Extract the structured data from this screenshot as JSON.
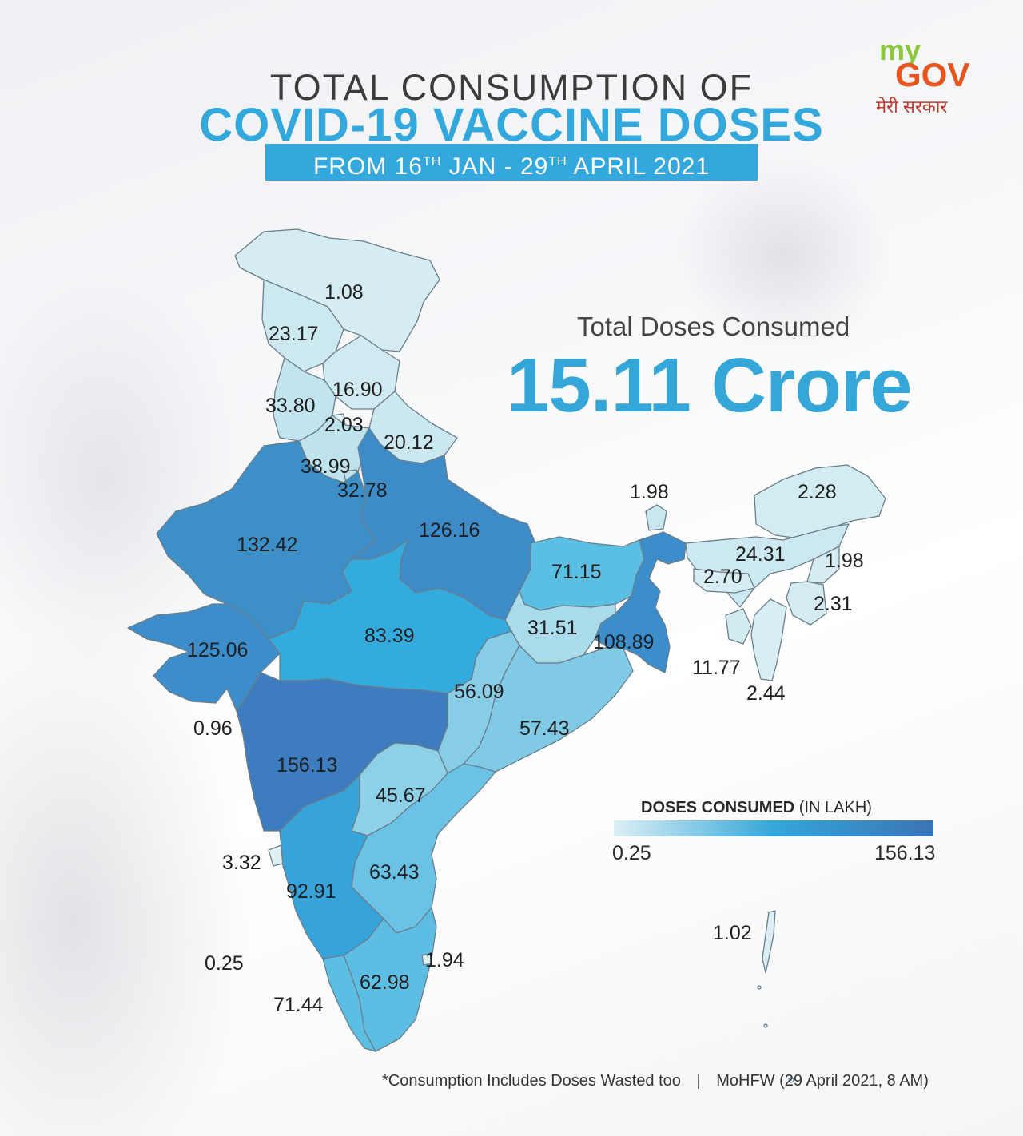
{
  "header": {
    "title_line1": "TOTAL CONSUMPTION OF",
    "title_line2": "COVID-19 VACCINE DOSES",
    "date_from": "FROM 16",
    "date_sup1": "TH",
    "date_mid": " JAN - 29",
    "date_sup2": "TH",
    "date_end": " APRIL 2021"
  },
  "logo": {
    "my": "my",
    "gov": "GOV",
    "tagline": "मेरी सरकार"
  },
  "total": {
    "label": "Total Doses Consumed",
    "value": "15.11 Crore"
  },
  "legend": {
    "title_bold": "DOSES CONSUMED",
    "title_unit": " (IN LAKH)",
    "min": "0.25",
    "max": "156.13",
    "color_min": "#dceff5",
    "color_mid": "#34a7d9",
    "color_max": "#3a74b6"
  },
  "states": [
    {
      "id": "ladakh",
      "value": "1.08"
    },
    {
      "id": "jammu-kashmir",
      "value": "23.17"
    },
    {
      "id": "himachal-pradesh",
      "value": "16.90"
    },
    {
      "id": "punjab",
      "value": "33.80"
    },
    {
      "id": "chandigarh",
      "value": "2.03"
    },
    {
      "id": "uttarakhand",
      "value": "20.12"
    },
    {
      "id": "haryana",
      "value": "38.99"
    },
    {
      "id": "delhi",
      "value": "32.78"
    },
    {
      "id": "rajasthan",
      "value": "132.42"
    },
    {
      "id": "uttar-pradesh",
      "value": "126.16"
    },
    {
      "id": "sikkim",
      "value": "1.98"
    },
    {
      "id": "arunachal-pradesh",
      "value": "2.28"
    },
    {
      "id": "bihar",
      "value": "71.15"
    },
    {
      "id": "assam",
      "value": "24.31"
    },
    {
      "id": "nagaland",
      "value": "1.98"
    },
    {
      "id": "meghalaya",
      "value": "2.70"
    },
    {
      "id": "manipur",
      "value": "2.31"
    },
    {
      "id": "gujarat",
      "value": "125.06"
    },
    {
      "id": "madhya-pradesh",
      "value": "83.39"
    },
    {
      "id": "jharkhand",
      "value": "31.51"
    },
    {
      "id": "west-bengal",
      "value": "108.89"
    },
    {
      "id": "tripura",
      "value": "11.77"
    },
    {
      "id": "mizoram",
      "value": "2.44"
    },
    {
      "id": "chhattisgarh",
      "value": "56.09"
    },
    {
      "id": "odisha",
      "value": "57.43"
    },
    {
      "id": "dnh-dd",
      "value": "0.96"
    },
    {
      "id": "maharashtra",
      "value": "156.13"
    },
    {
      "id": "telangana",
      "value": "45.67"
    },
    {
      "id": "goa",
      "value": "3.32"
    },
    {
      "id": "andhra-pradesh",
      "value": "63.43"
    },
    {
      "id": "karnataka",
      "value": "92.91"
    },
    {
      "id": "andaman-nicobar",
      "value": "1.02"
    },
    {
      "id": "lakshadweep",
      "value": "0.25"
    },
    {
      "id": "puducherry",
      "value": "1.94"
    },
    {
      "id": "tamil-nadu",
      "value": "62.98"
    },
    {
      "id": "kerala",
      "value": "71.44"
    }
  ],
  "footer": {
    "note": "*Consumption Includes Doses Wasted too",
    "separator": "|",
    "source": "MoHFW (29 April 2021, 8 AM)"
  }
}
